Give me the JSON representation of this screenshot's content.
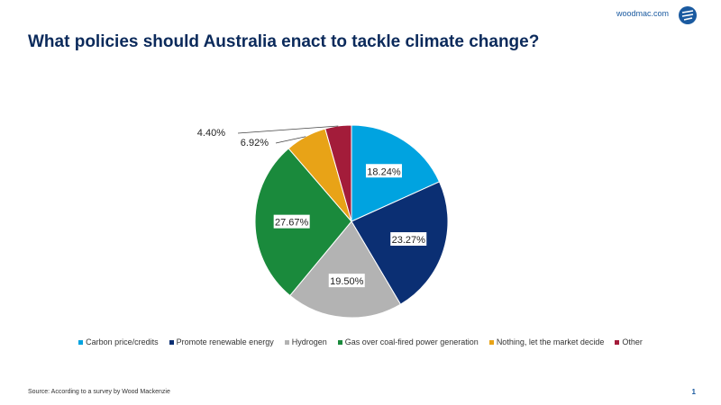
{
  "header": {
    "brand": "woodmac.com",
    "logo_icon": "woodmac-logo-icon"
  },
  "footer": {
    "source": "Source: According to a survey by Wood Mackenzie",
    "page_number": "1"
  },
  "chart_data": {
    "type": "pie",
    "title": "What policies should Australia enact to tackle climate change?",
    "legend_position": "bottom",
    "slices": [
      {
        "name": "Carbon price/credits",
        "value": 18.24,
        "label": "18.24%",
        "color": "#00a3e0"
      },
      {
        "name": "Promote renewable energy",
        "value": 23.27,
        "label": "23.27%",
        "color": "#0b2f73"
      },
      {
        "name": "Hydrogen",
        "value": 19.5,
        "label": "19.50%",
        "color": "#b3b3b3"
      },
      {
        "name": "Gas over coal-fired power generation",
        "value": 27.67,
        "label": "27.67%",
        "color": "#1a8a3c"
      },
      {
        "name": "Nothing, let the market decide",
        "value": 6.92,
        "label": "6.92%",
        "color": "#e8a317"
      },
      {
        "name": "Other",
        "value": 4.4,
        "label": "4.40%",
        "color": "#a31c3a"
      }
    ]
  }
}
